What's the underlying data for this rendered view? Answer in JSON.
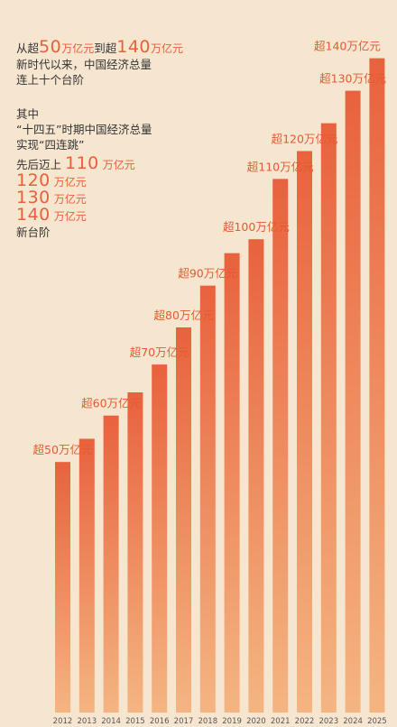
{
  "intro": {
    "line1_prefix": "从超",
    "line1_num1": "50",
    "line1_unit1": "万亿元",
    "line1_mid": "到超",
    "line1_num2": "140",
    "line1_unit2": "万亿元",
    "line2": "新时代以来，中国经济总量",
    "line3": "连上十个台阶",
    "line4": "其中",
    "line5": "“十四五”时期中国经济总量",
    "line6": "实现“四连跳”",
    "line7_prefix": "先后迈上",
    "steps": [
      {
        "num": "110",
        "unit": "万亿元"
      },
      {
        "num": "120",
        "unit": "万亿元"
      },
      {
        "num": "130",
        "unit": "万亿元"
      },
      {
        "num": "140",
        "unit": "万亿元"
      }
    ],
    "last_line": "新台阶"
  },
  "colors": {
    "bar_top": "#e8623d",
    "bar_bottom": "#f4b582",
    "label": "#e25a32",
    "background": "#f7e6cf"
  },
  "chart_data": {
    "type": "bar",
    "categories": [
      "2012",
      "2013",
      "2014",
      "2015",
      "2016",
      "2017",
      "2018",
      "2019",
      "2020",
      "2021",
      "2022",
      "2023",
      "2024",
      "2025"
    ],
    "values": [
      54,
      59,
      64,
      69,
      75,
      83,
      92,
      99,
      102,
      115,
      121,
      127,
      134,
      141
    ],
    "labels": [
      "超50万亿元",
      "超60万亿元",
      "超70万亿元",
      "超80万亿元",
      "超90万亿元",
      "超100万亿元",
      "超110万亿元",
      "超120万亿元",
      "超130万亿元",
      "超140万亿元"
    ],
    "label_years": [
      "2012",
      "2014",
      "2016",
      "2017",
      "2018",
      "2020",
      "2021",
      "2022",
      "2024",
      "2025"
    ],
    "ylim": [
      0,
      145
    ]
  }
}
